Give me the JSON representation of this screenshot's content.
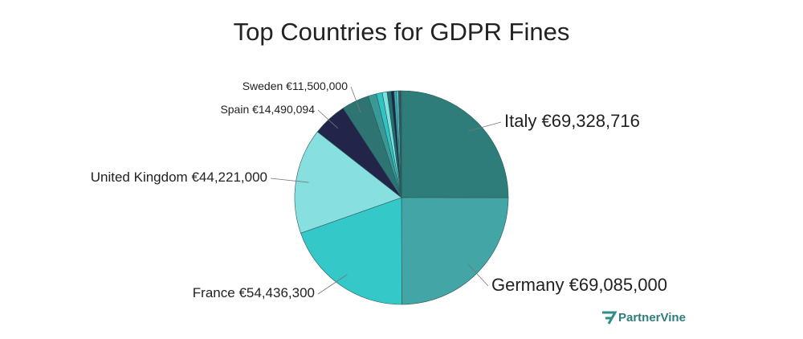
{
  "chart_data": {
    "type": "pie",
    "title": "Top Countries for GDPR Fines",
    "categories": [
      "Italy",
      "Germany",
      "France",
      "United Kingdom",
      "Spain",
      "Sweden",
      null,
      null,
      null,
      null,
      null,
      null,
      null,
      null,
      null,
      null
    ],
    "values": [
      69328716,
      69085000,
      54436300,
      44221000,
      14490094,
      11500000,
      3500000,
      2500000,
      2000000,
      1600000,
      1300000,
      1000000,
      800000,
      600000,
      400000,
      300000
    ],
    "value_labels": [
      "€69,328,716",
      "€69,085,000",
      "€54,436,300",
      "€44,221,000",
      "€14,490,094",
      "€11,500,000",
      null,
      null,
      null,
      null,
      null,
      null,
      null,
      null,
      null,
      null
    ],
    "colors": [
      "#2e7d7a",
      "#43a5a5",
      "#35c8c8",
      "#87dfe0",
      "#22244a",
      "#2e7472",
      "#3a9896",
      "#2fc3c3",
      "#7fe0e0",
      "#1f6f6d",
      "#20234a",
      "#3ab0b0",
      "#5fd0d0",
      "#2a5e7a",
      "#1c3c5a",
      "#e07050"
    ]
  },
  "watermark": "PartnerVine"
}
